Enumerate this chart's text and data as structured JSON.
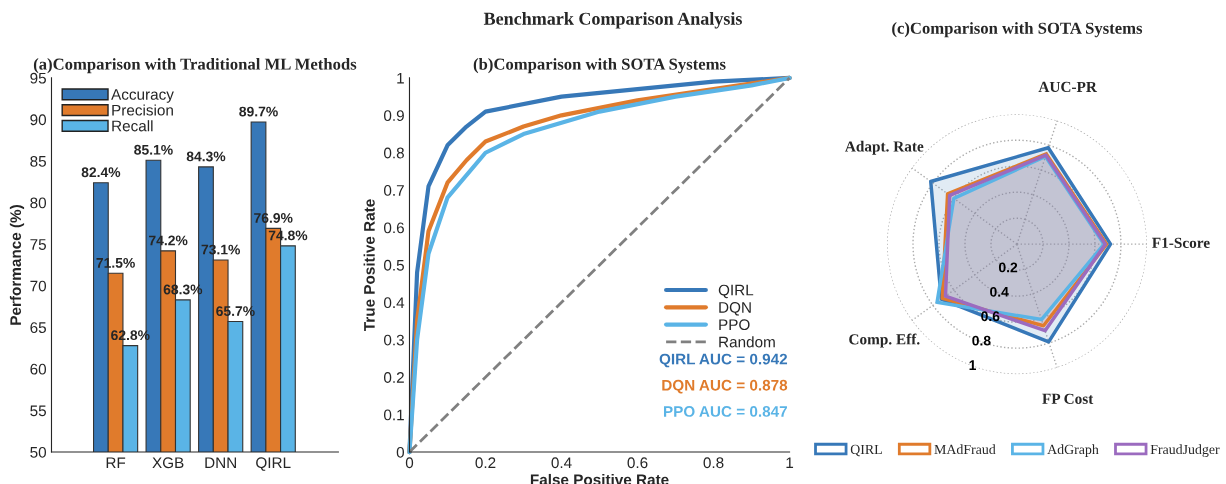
{
  "chart_data": [
    {
      "type": "bar",
      "title": "(a)Comparison with Traditional ML Methods",
      "ylabel": "Performance (%)",
      "categories": [
        "RF",
        "XGB",
        "DNN",
        "QIRL"
      ],
      "ylim": [
        50,
        95
      ],
      "yticks": [
        50,
        55,
        60,
        65,
        70,
        75,
        80,
        85,
        90,
        95
      ],
      "grid": false,
      "legend": "top left",
      "series": [
        {
          "name": "Accuracy",
          "color": "#3778b8",
          "values": [
            82.4,
            85.1,
            84.3,
            89.7
          ],
          "value_labels": [
            "82.4%",
            "85.1%",
            "84.3%",
            "89.7%"
          ]
        },
        {
          "name": "Precision",
          "color": "#e07b2c",
          "values": [
            71.5,
            74.2,
            73.1,
            76.9
          ],
          "value_labels": [
            "71.5%",
            "74.2%",
            "73.1%",
            "76.9%"
          ]
        },
        {
          "name": "Recall",
          "color": "#5ab4e6",
          "values": [
            62.8,
            68.3,
            65.7,
            74.8
          ],
          "value_labels": [
            "62.8%",
            "68.3%",
            "65.7%",
            "74.8%"
          ]
        }
      ]
    },
    {
      "type": "line",
      "title": "(b)Comparison with SOTA Systems",
      "xlabel": "False Positive Rate",
      "ylabel": "True Positive Rate",
      "xlim": [
        0,
        1
      ],
      "ylim": [
        0,
        1
      ],
      "xticks": [
        0,
        0.2,
        0.4,
        0.6,
        0.8,
        1
      ],
      "yticks": [
        0,
        0.1,
        0.2,
        0.3,
        0.4,
        0.5,
        0.6,
        0.7,
        0.8,
        0.9,
        1
      ],
      "grid": false,
      "legend": "right",
      "annotations": [
        "Benchmark Comparison Analysis",
        "QIRL AUC = 0.942",
        "DQN AUC = 0.878",
        "PPO AUC = 0.847"
      ],
      "series": [
        {
          "name": "QIRL",
          "color": "#3778b8",
          "line_style": "solid",
          "x": [
            0,
            0.02,
            0.05,
            0.1,
            0.15,
            0.2,
            0.4,
            0.6,
            0.8,
            1
          ],
          "values": [
            0,
            0.48,
            0.71,
            0.82,
            0.87,
            0.91,
            0.95,
            0.97,
            0.99,
            1
          ]
        },
        {
          "name": "DQN",
          "color": "#e07b2c",
          "line_style": "solid",
          "x": [
            0,
            0.02,
            0.05,
            0.1,
            0.15,
            0.2,
            0.3,
            0.4,
            0.6,
            0.8,
            1
          ],
          "values": [
            0,
            0.35,
            0.59,
            0.72,
            0.78,
            0.83,
            0.87,
            0.9,
            0.94,
            0.97,
            1
          ]
        },
        {
          "name": "PPO",
          "color": "#5ab4e6",
          "line_style": "solid",
          "x": [
            0,
            0.02,
            0.05,
            0.1,
            0.2,
            0.3,
            0.5,
            0.7,
            0.9,
            1
          ],
          "values": [
            0,
            0.3,
            0.53,
            0.68,
            0.8,
            0.85,
            0.91,
            0.95,
            0.98,
            1
          ]
        },
        {
          "name": "Random",
          "color": "#808080",
          "line_style": "dashed",
          "x": [
            0,
            1
          ],
          "values": [
            0,
            1
          ]
        }
      ]
    },
    {
      "type": "radar",
      "title": "(c)Comparison with SOTA Systems",
      "categories": [
        "AUC-PR",
        "F1-Score",
        "FP Cost",
        "Comp. Eff.",
        "Adapt. Rate"
      ],
      "ylim": [
        0,
        1
      ],
      "yticks": [
        0.2,
        0.4,
        0.6,
        0.8,
        1
      ],
      "grid": true,
      "legend": "bottom",
      "series": [
        {
          "name": "QIRL",
          "color": "#3778b8",
          "values": [
            0.78,
            0.72,
            0.79,
            0.72,
            0.82
          ]
        },
        {
          "name": "MAdFraud",
          "color": "#e07b2c",
          "values": [
            0.73,
            0.69,
            0.66,
            0.71,
            0.66
          ]
        },
        {
          "name": "AdGraph",
          "color": "#5ab4e6",
          "values": [
            0.71,
            0.67,
            0.61,
            0.76,
            0.6
          ]
        },
        {
          "name": "FraudJudger",
          "color": "#9b6bbf",
          "values": [
            0.72,
            0.68,
            0.7,
            0.68,
            0.64
          ]
        }
      ]
    }
  ]
}
